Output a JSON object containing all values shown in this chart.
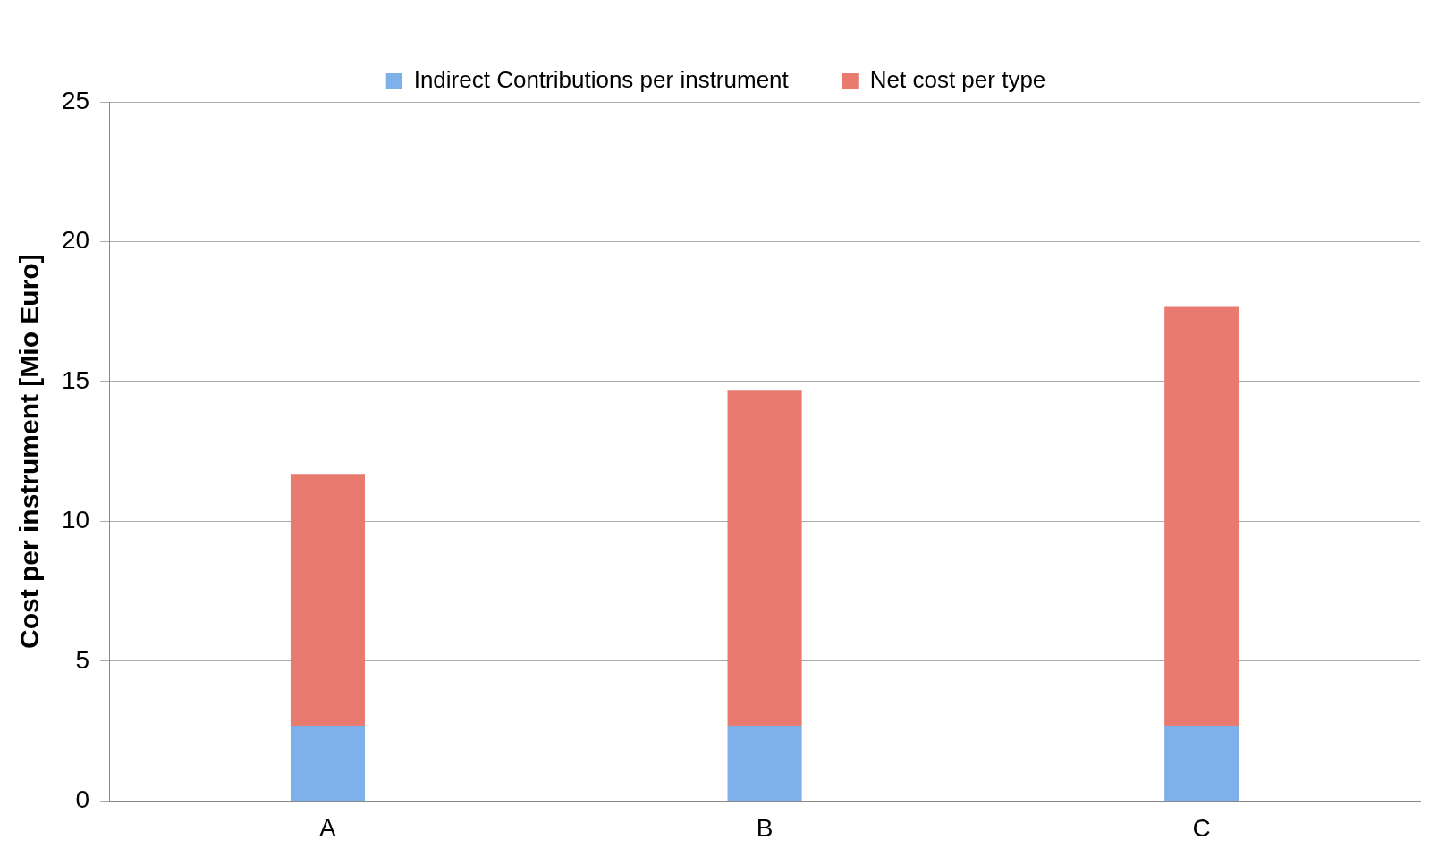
{
  "chart_data": {
    "type": "bar",
    "ylabel": "Cost per instrument [Mio Euro]",
    "categories": [
      "A",
      "B",
      "C"
    ],
    "stacked": true,
    "series": [
      {
        "name": "Indirect Contributions per instrument",
        "color": "#7fb0ea",
        "values": [
          2.7,
          2.7,
          2.7
        ]
      },
      {
        "name": "Net cost per type",
        "color": "#e87a70",
        "values": [
          9,
          12,
          15
        ]
      }
    ],
    "ylim": [
      0,
      25
    ],
    "yticks": [
      0,
      5,
      10,
      15,
      20,
      25
    ],
    "grid": "y",
    "legend": "top"
  }
}
